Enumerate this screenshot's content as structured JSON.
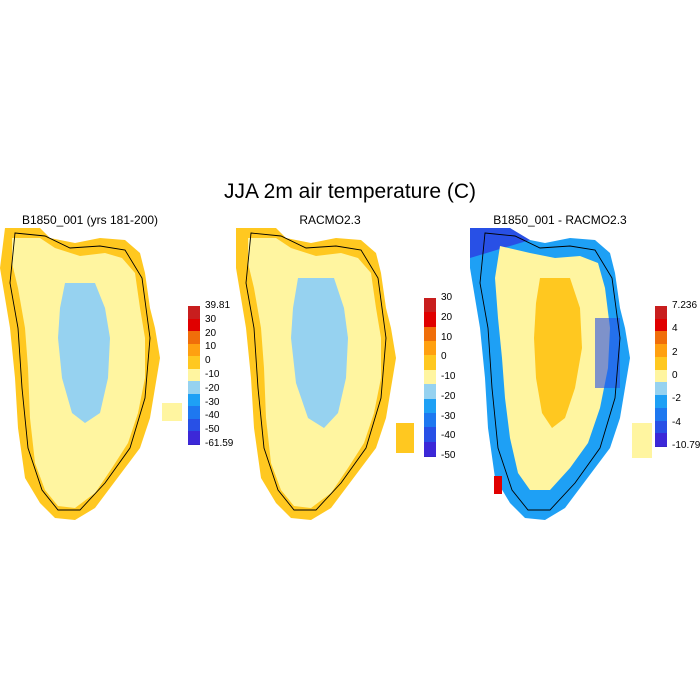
{
  "figure": {
    "title": "JJA 2m air temperature (C)"
  },
  "panels": [
    {
      "title": "B1850_001 (yrs 181-200)",
      "colorbar": {
        "colors": [
          "#3c28d8",
          "#2850e6",
          "#1e78f0",
          "#1ea0f5",
          "#96d2f0",
          "#fff5a0",
          "#ffc820",
          "#ffa010",
          "#f06e0a",
          "#e00000",
          "#c81e1e"
        ],
        "labels": [
          "39.81",
          "30",
          "20",
          "10",
          "0",
          "-10",
          "-20",
          "-30",
          "-40",
          "-50",
          "-61.59"
        ]
      }
    },
    {
      "title": "RACMO2.3",
      "colorbar": {
        "colors": [
          "#3c28d8",
          "#2850e6",
          "#1e78f0",
          "#1ea0f5",
          "#96d2f0",
          "#fff5a0",
          "#ffc820",
          "#ffa010",
          "#f06e0a",
          "#e00000",
          "#c81e1e"
        ],
        "labels": [
          "30",
          "20",
          "10",
          "0",
          "-10",
          "-20",
          "-30",
          "-40",
          "-50"
        ]
      }
    },
    {
      "title": "B1850_001 - RACMO2.3",
      "colorbar": {
        "colors": [
          "#3c28d8",
          "#2850e6",
          "#1e78f0",
          "#1ea0f5",
          "#96d2f0",
          "#fff5a0",
          "#ffc820",
          "#ffa010",
          "#f06e0a",
          "#e00000",
          "#c81e1e"
        ],
        "labels": [
          "7.236",
          "4",
          "2",
          "0",
          "-2",
          "-4",
          "-10.791"
        ]
      }
    }
  ]
}
